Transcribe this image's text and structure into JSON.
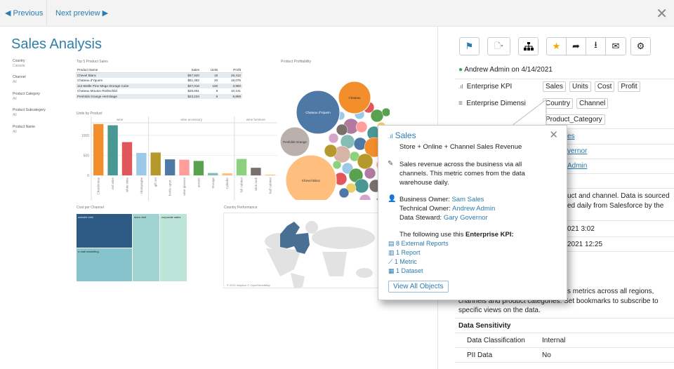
{
  "nav": {
    "previous": "Previous",
    "next": "Next preview",
    "prev_icon": "triangle-left",
    "next_icon": "triangle-right",
    "close_icon": "close-x"
  },
  "dashboard": {
    "title": "Sales Analysis",
    "filters": [
      {
        "label": "Country",
        "value": "Canada"
      },
      {
        "label": "Channel",
        "value": "All"
      },
      {
        "label": "Product Category",
        "value": "All"
      },
      {
        "label": "Product Subcategory",
        "value": "All"
      },
      {
        "label": "Product Name",
        "value": "All"
      }
    ],
    "top_sales": {
      "title": "Top 5 Product Sales",
      "columns": [
        "Product Name",
        "Sales",
        "Units",
        "Profit"
      ],
      "rows": [
        [
          "Chevel Blanc",
          "$67,920",
          "18",
          "26,412"
        ],
        [
          "Chateau d'Yquem",
          "$51,382",
          "20",
          "19,076"
        ],
        [
          "112-Bottle Pine Mega Storage Cube",
          "$27,016",
          "160",
          "3,980"
        ],
        [
          "Chateau Mouton-Rothschild",
          "$26,691",
          "8",
          "10,141"
        ],
        [
          "Penfolds Grange Hermitage",
          "$23,234",
          "8",
          "8,898"
        ]
      ]
    },
    "profitability": {
      "title": "Product Profitability",
      "bubbles": [
        "Chateau d'Yquem",
        "Chateau",
        "Penfolds Grange",
        "Chevel Blanc"
      ]
    },
    "cost_per_channel": {
      "title": "Cost per Channel",
      "cells": [
        "website visit",
        "e-mail marketing",
        "store visit",
        "corporate sales"
      ]
    },
    "country_performance": {
      "title": "Country Performance",
      "credit": "© 2021 Mapbox © OpenStreetMap"
    }
  },
  "chart_data": {
    "type": "bar",
    "title": "Units by Product",
    "groups": [
      "wine",
      "wine accessory",
      "wine furniture"
    ],
    "categories": [
      "Chardonnay",
      "red wine",
      "white wine",
      "champagne",
      "gift set",
      "bottle open...",
      "wine glasses",
      "aerator",
      "Storage",
      "Cylinder",
      "full cabinet",
      "wine rack",
      "half cabinet"
    ],
    "group_of": [
      0,
      0,
      0,
      0,
      1,
      1,
      1,
      1,
      1,
      1,
      2,
      2,
      2
    ],
    "values": [
      1280,
      1250,
      830,
      560,
      570,
      400,
      390,
      360,
      60,
      50,
      410,
      190,
      20
    ],
    "colors": [
      "#f28e2b",
      "#499894",
      "#e15759",
      "#9dc9e8",
      "#b6992d",
      "#4e79a7",
      "#ff9d9a",
      "#59a14f",
      "#86bcb6",
      "#ffbe7d",
      "#8cd17d",
      "#79706e",
      "#f1ce63"
    ],
    "yticks": [
      0,
      500,
      1000
    ],
    "ylim": [
      0,
      1400
    ]
  },
  "toolbar": {
    "icons": [
      "bookmark-icon",
      "document-dropdown-icon",
      "hierarchy-icon",
      "star-icon",
      "share-icon",
      "download-icon",
      "mail-icon",
      "gear-icon"
    ],
    "accent": "#2b7bb0",
    "star_color": "#f5a800"
  },
  "panel": {
    "certified": "Andrew Admin on 4/14/2021",
    "kpi_label": "Enterprise KPI",
    "kpis": [
      "Sales",
      "Units",
      "Cost",
      "Profit"
    ],
    "dim_label": "Enterprise Dimensi",
    "dims": [
      "Country",
      "Channel",
      "Product_Category"
    ],
    "frag_owner": "es",
    "frag_steward": "vernor",
    "frag_tech": "Admin",
    "frag_desc1": "uct and channel. Data is sourced",
    "frag_desc2": "ed daily from Salesforce by the",
    "frag_date1": "021 3:02",
    "frag_date2": "2021 12:25",
    "frag_note1": "s metrics across all regions,",
    "note2": "channels and product categories. Set bookmarks to subscribe to",
    "note3": "specific views on the data.",
    "sensitivity_title": "Data Sensitivity",
    "sensitivity": [
      {
        "k": "Data Classification",
        "v": "Internal"
      },
      {
        "k": "PII Data",
        "v": "No"
      }
    ]
  },
  "popup": {
    "title": "Sales",
    "subtitle": "Store + Online + Channel Sales Revenue",
    "desc1": "Sales revenue across the business via all",
    "desc2": "channels. This metric comes from the data",
    "desc3": "warehouse daily.",
    "business_owner_label": "Business Owner: ",
    "business_owner": "Sam Sales",
    "technical_owner_label": "Technical Owner: ",
    "technical_owner": "Andrew Admin",
    "steward_label": "Data Steward: ",
    "steward": "Gary Governor",
    "uses_prefix": "The following use this ",
    "uses_bold": "Enterprise KPI:",
    "uses": [
      {
        "label": "8 External Reports",
        "icon": "external-report-icon"
      },
      {
        "label": "1 Report",
        "icon": "report-icon"
      },
      {
        "label": "1 Metric",
        "icon": "metric-icon"
      },
      {
        "label": "1 Dataset",
        "icon": "dataset-icon"
      }
    ],
    "view_all": "View All Objects"
  }
}
